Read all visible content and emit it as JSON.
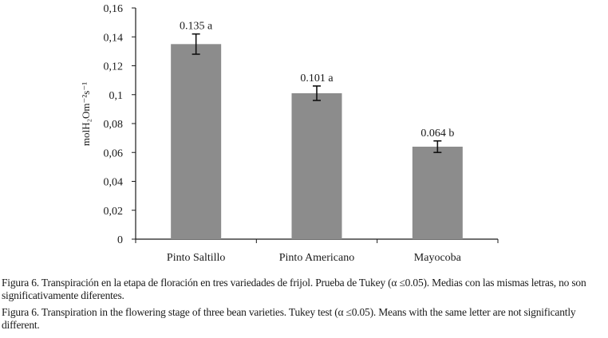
{
  "chart_data": {
    "type": "bar",
    "categories": [
      "Pinto Saltillo",
      "Pinto Americano",
      "Mayocoba"
    ],
    "values": [
      0.135,
      0.101,
      0.064
    ],
    "error": [
      0.007,
      0.005,
      0.004
    ],
    "data_labels": [
      "0.135 a",
      "0.101 a",
      "0.064 b"
    ],
    "ylabel": "molH₂Om⁻²s⁻¹",
    "ylim": [
      0,
      0.16
    ],
    "yticks": [
      0,
      0.02,
      0.04,
      0.06,
      0.08,
      0.1,
      0.12,
      0.14,
      0.16
    ],
    "ytick_labels": [
      "0",
      "0,02",
      "0,04",
      "0,06",
      "0,08",
      "0,1",
      "0,12",
      "0,14",
      "0,16"
    ],
    "grid": false,
    "legend": "none",
    "bar_color": "#8c8c8c"
  },
  "captions": {
    "es": "Figura  6. Transpiración en la etapa de floración en tres variedades de frijol. Prueba de Tukey (α ≤0.05). Medias con las mismas letras, no son significativamente diferentes.",
    "en": "Figura 6. Transpiration in the flowering stage of three bean varieties. Tukey test (α ≤0.05). Means with the same letter are not significantly different."
  }
}
